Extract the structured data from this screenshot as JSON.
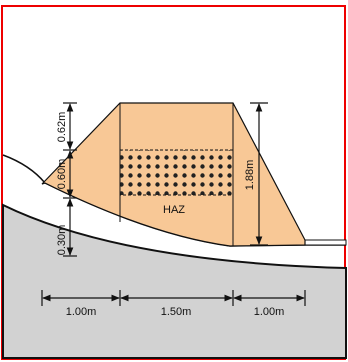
{
  "dimensions": {
    "left": [
      "0.62m",
      "0.60m",
      "0.30m"
    ],
    "right": "1.88m",
    "bottom": [
      "1.00m",
      "1.50m",
      "1.00m"
    ]
  },
  "labels": {
    "zone": "HAZ"
  }
}
